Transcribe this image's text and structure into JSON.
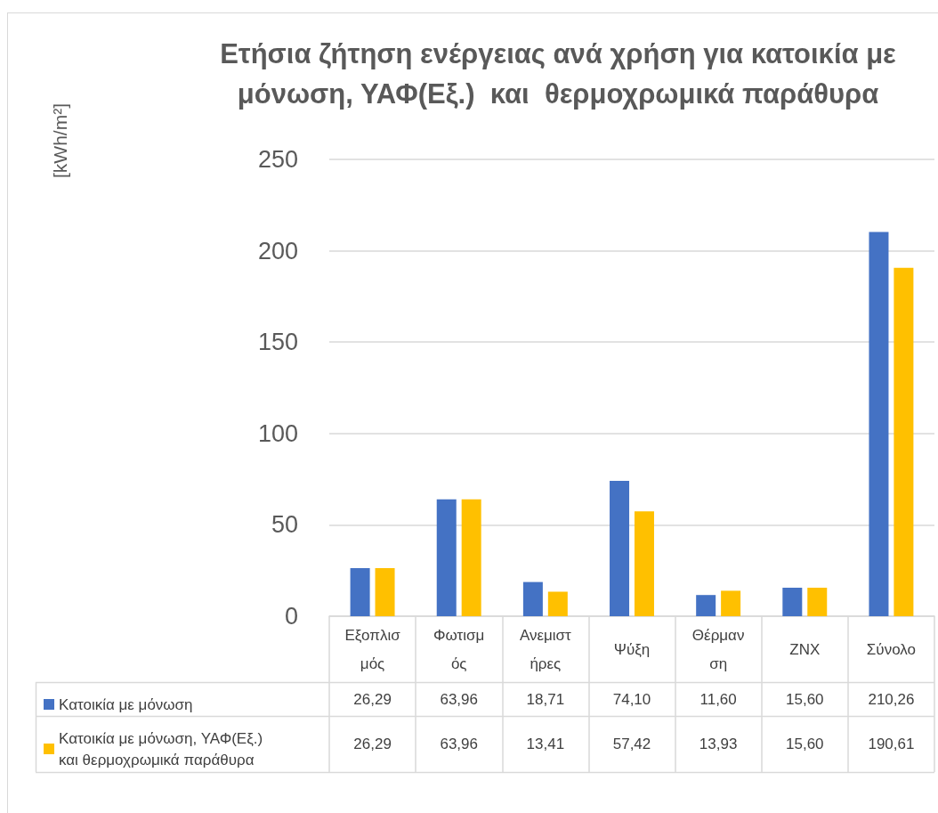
{
  "chart_data": {
    "type": "bar",
    "title": "Ετήσια ζήτηση ενέργειας ανά χρήση για κατοικία με μόνωση, ΥΑΦ(Εξ.)  και  θερμοχρωμικά παράθυρα",
    "annotations": [
      "[kWh/m²]"
    ],
    "categories": [
      "Εξοπλισμός",
      "Φωτισμός",
      "Ανεμιστήρες",
      "Ψύξη",
      "Θέρμανση",
      "ΖΝΧ",
      "Σύνολο"
    ],
    "series": [
      {
        "name": "Κατοικία με μόνωση",
        "color": "#4472c4",
        "values": [
          26.29,
          63.96,
          18.71,
          74.1,
          11.6,
          15.6,
          210.26
        ],
        "value_labels": [
          "26,29",
          "63,96",
          "18,71",
          "74,10",
          "11,60",
          "15,60",
          "210,26"
        ]
      },
      {
        "name": "Κατοικία με μόνωση, ΥΑΦ(Εξ.) και θερμοχρωμικά παράθυρα",
        "color": "#ffc000",
        "values": [
          26.29,
          63.96,
          13.41,
          57.42,
          13.93,
          15.6,
          190.61
        ],
        "value_labels": [
          "26,29",
          "63,96",
          "13,41",
          "57,42",
          "13,93",
          "15,60",
          "190,61"
        ]
      }
    ],
    "ylim": [
      0,
      250
    ],
    "yticks": [
      0,
      50,
      100,
      150,
      200,
      250
    ],
    "grid": "y",
    "legend": "bottom"
  }
}
